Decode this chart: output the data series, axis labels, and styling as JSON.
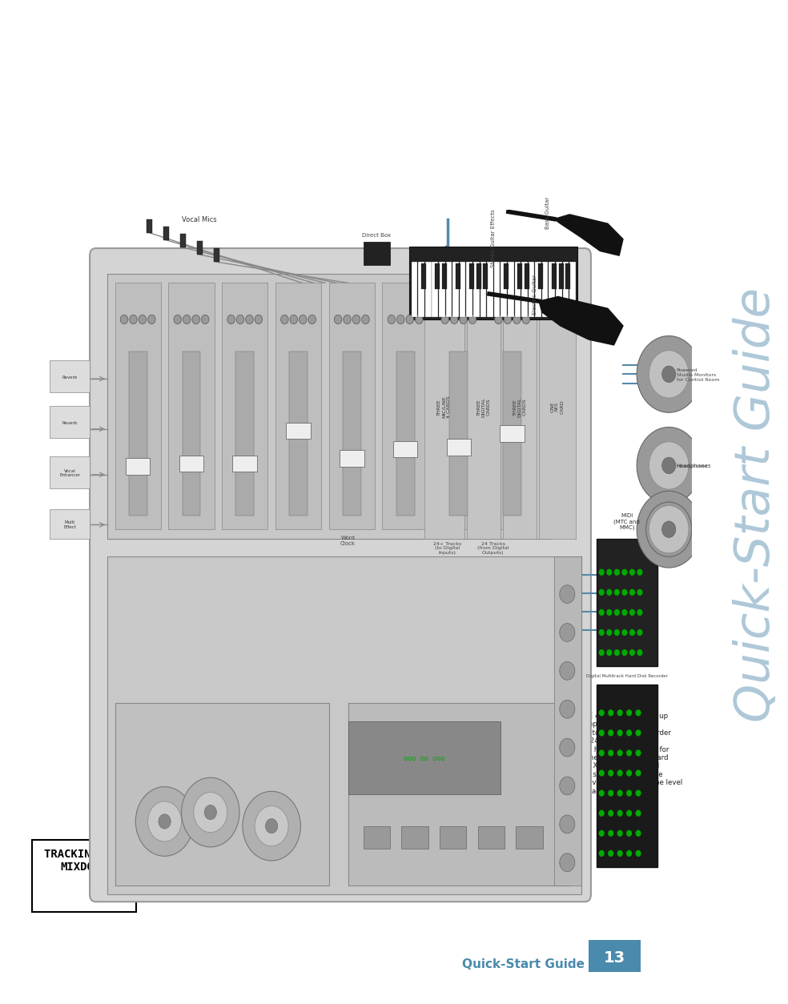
{
  "page_bg": "#ffffff",
  "title_rotated": "Quick-Start Guide",
  "title_color": "#aec8d8",
  "title_fontsize": 48,
  "footer_label": "Quick-Start Guide",
  "footer_label_color": "#4a8aad",
  "footer_page_num": "13",
  "footer_page_bg": "#4a8aad",
  "footer_page_color": "#ffffff",
  "tracking_label": "TRACKING and\nMIXDOWN",
  "tracking_label_color": "#000000",
  "description_text": "This diagram demonstrates how to use three MIC/LINE 4 cards, providing up\nto 24 microphone and instrument inputs (2 Mic/Line inputs and 12 Line\ninputs). Three DIGITAL cards provide 24 output tracks to a hard disk recorder\nvia ADAT optical connections (and Fader Bank 1) and 24 input tracks via\nADAT optical connections (and Fader Bank 2) from the hard disk recorder for\nmixdown. The MIDI IN/OUTs provide MMC (MIDI Machine Control) to the hard\ndisk recorder and MTC (MIDI Time Code) to the Digital X Bus. An AES card\nprovides digital sends and returns for external effects so you can keep the\nsignal in the digital domain, and the MIX OUT card provides two stereo line level\ncontrol room outputs (1=NEAR; 2=MAIN [not shown]) and two stereo\nheadphone outputs for monitoring the input sources.",
  "desc_fontsize": 6.2,
  "diagram_bg": "#e8e8e8",
  "mixer_bg": "#d0d0d0",
  "cable_blue": "#5588aa",
  "cable_gray": "#888888",
  "black": "#111111",
  "dark_gray": "#444444",
  "mid_gray": "#888888",
  "light_gray": "#cccccc"
}
